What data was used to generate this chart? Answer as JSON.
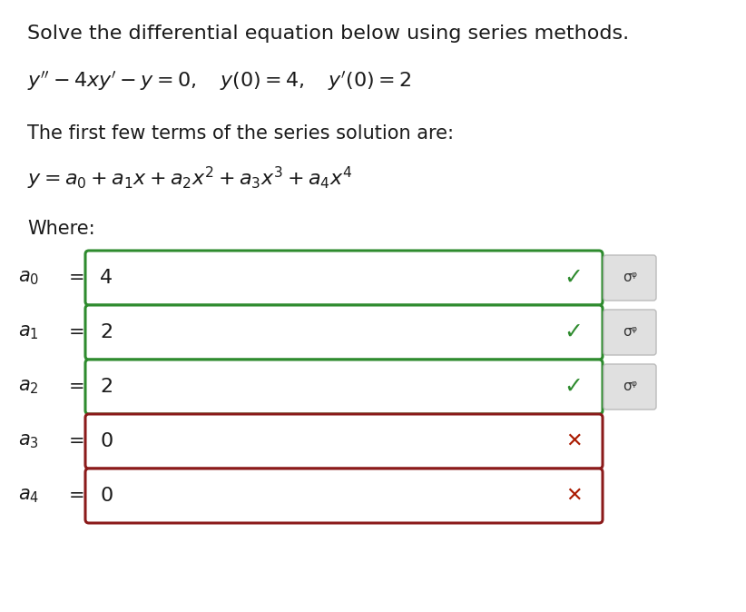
{
  "title_line": "Solve the differential equation below using series methods.",
  "intro_line": "The first few terms of the series solution are:",
  "where_label": "Where:",
  "rows": [
    {
      "label": "$a_0$",
      "value": "4",
      "correct": true,
      "show_icon": true
    },
    {
      "label": "$a_1$",
      "value": "2",
      "correct": true,
      "show_icon": true
    },
    {
      "label": "$a_2$",
      "value": "2",
      "correct": true,
      "show_icon": true
    },
    {
      "label": "$a_3$",
      "value": "0",
      "correct": false,
      "show_icon": false
    },
    {
      "label": "$a_4$",
      "value": "0",
      "correct": false,
      "show_icon": false
    }
  ],
  "bg_color": "#ffffff",
  "text_color": "#1a1a1a",
  "box_green_border": "#2e8b2e",
  "box_red_border": "#8b1a1a",
  "icon_bg": "#e0e0e0",
  "icon_border": "#bbbbbb",
  "check_color": "#2e8b2e",
  "cross_color": "#aa1a00",
  "title_fontsize": 16,
  "body_fontsize": 15,
  "eq_fontsize": 16,
  "series_fontsize": 16,
  "where_fontsize": 15,
  "row_label_fs": 15,
  "row_value_fs": 16,
  "mark_fs": 18
}
